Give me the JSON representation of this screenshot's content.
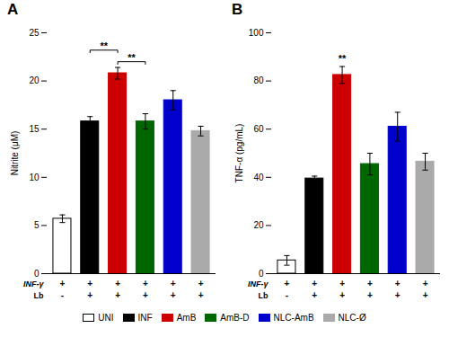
{
  "chart_data": [
    {
      "type": "bar",
      "title": "A",
      "ylabel": "Nitrite (μM)",
      "categories": [
        "UNI",
        "INF",
        "AmB",
        "AmB-D",
        "NLC-AmB",
        "NLC-Ø"
      ],
      "values": [
        5.7,
        15.8,
        20.8,
        15.8,
        18.0,
        14.8
      ],
      "errors": [
        0.4,
        0.5,
        0.6,
        0.8,
        1.0,
        0.5
      ],
      "colors": [
        "#ffffff",
        "#000000",
        "#cc0000",
        "#006600",
        "#0000cc",
        "#aaaaaa"
      ],
      "edge_colors": [
        "#000000",
        "#000000",
        "#cc0000",
        "#006600",
        "#0000cc",
        "#aaaaaa"
      ],
      "ylim": [
        0,
        25
      ],
      "yticks": [
        0,
        5,
        10,
        15,
        20,
        25
      ],
      "tick_labels": "y",
      "legend": "bottom",
      "condition_rows": [
        {
          "label": "INF-γ",
          "values": [
            "+",
            "+",
            "+",
            "+",
            "+",
            "+"
          ]
        },
        {
          "label": "Lb",
          "values": [
            "-",
            "+",
            "+",
            "+",
            "+",
            "+"
          ]
        }
      ],
      "annotations": [
        {
          "x1": "INF",
          "x2": "AmB",
          "y": 23.2,
          "text": "**"
        },
        {
          "x1": "AmB",
          "x2": "AmB-D",
          "y": 22.0,
          "text": "**"
        }
      ]
    },
    {
      "type": "bar",
      "title": "B",
      "ylabel": "TNF-α (pg/mL)",
      "categories": [
        "UNI",
        "INF",
        "AmB",
        "AmB-D",
        "NLC-AmB",
        "NLC-Ø"
      ],
      "values": [
        5.5,
        39.5,
        82.5,
        45.5,
        61.0,
        46.5
      ],
      "errors": [
        2.0,
        1.0,
        3.5,
        4.5,
        6.0,
        3.5
      ],
      "colors": [
        "#ffffff",
        "#000000",
        "#cc0000",
        "#006600",
        "#0000cc",
        "#aaaaaa"
      ],
      "edge_colors": [
        "#000000",
        "#000000",
        "#cc0000",
        "#006600",
        "#0000cc",
        "#aaaaaa"
      ],
      "ylim": [
        0,
        100
      ],
      "yticks": [
        0,
        20,
        40,
        60,
        80,
        100
      ],
      "tick_labels": "y",
      "condition_rows": [
        {
          "label": "INF-γ",
          "values": [
            "+",
            "+",
            "+",
            "+",
            "+",
            "+"
          ]
        },
        {
          "label": "Lb",
          "values": [
            "-",
            "+",
            "+",
            "+",
            "+",
            "+"
          ]
        }
      ],
      "annotations": [
        {
          "x": "AmB",
          "y": 88.0,
          "text": "**"
        }
      ]
    }
  ]
}
